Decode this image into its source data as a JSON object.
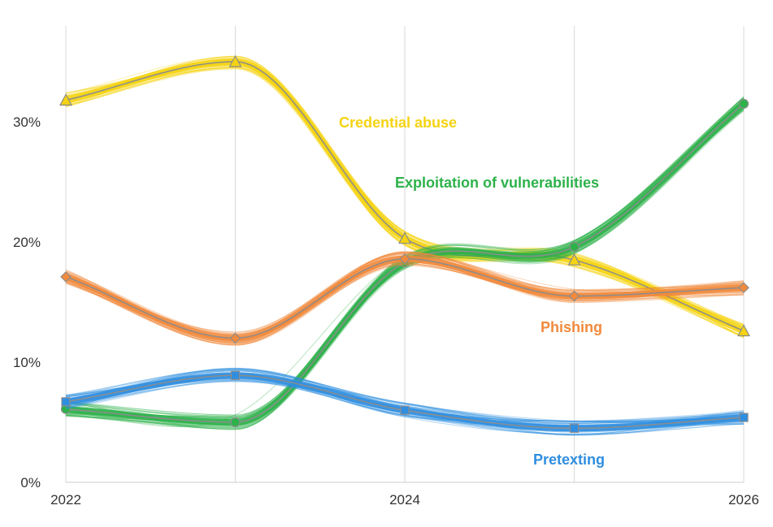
{
  "chart_data": {
    "type": "line",
    "x": [
      2022,
      2023,
      2024,
      2025,
      2026
    ],
    "xticks": [
      {
        "value": 2022,
        "label": "2022"
      },
      {
        "value": 2024,
        "label": "2024"
      },
      {
        "value": 2026,
        "label": "2026"
      }
    ],
    "yticks": [
      {
        "value": 0,
        "label": "0%"
      },
      {
        "value": 10,
        "label": "10%"
      },
      {
        "value": 20,
        "label": "20%"
      },
      {
        "value": 30,
        "label": "30%"
      }
    ],
    "ylim": [
      0,
      38
    ],
    "xlim": [
      2022,
      2026
    ],
    "grid": "vertical",
    "series": [
      {
        "name": "Credential abuse",
        "color": "#f5d312",
        "marker": "triangle",
        "values": [
          31.8,
          35.0,
          20.3,
          18.5,
          12.6
        ]
      },
      {
        "name": "Exploitation of vulnerabilities",
        "color": "#2db24a",
        "marker": "circle",
        "values": [
          6.1,
          5.0,
          18.3,
          19.6,
          31.5
        ]
      },
      {
        "name": "Phishing",
        "color": "#f28a3c",
        "marker": "diamond",
        "values": [
          17.1,
          12.0,
          18.6,
          15.5,
          16.2
        ]
      },
      {
        "name": "Pretexting",
        "color": "#2f8ee0",
        "marker": "square",
        "values": [
          6.7,
          8.9,
          6.0,
          4.5,
          5.4
        ]
      }
    ]
  }
}
